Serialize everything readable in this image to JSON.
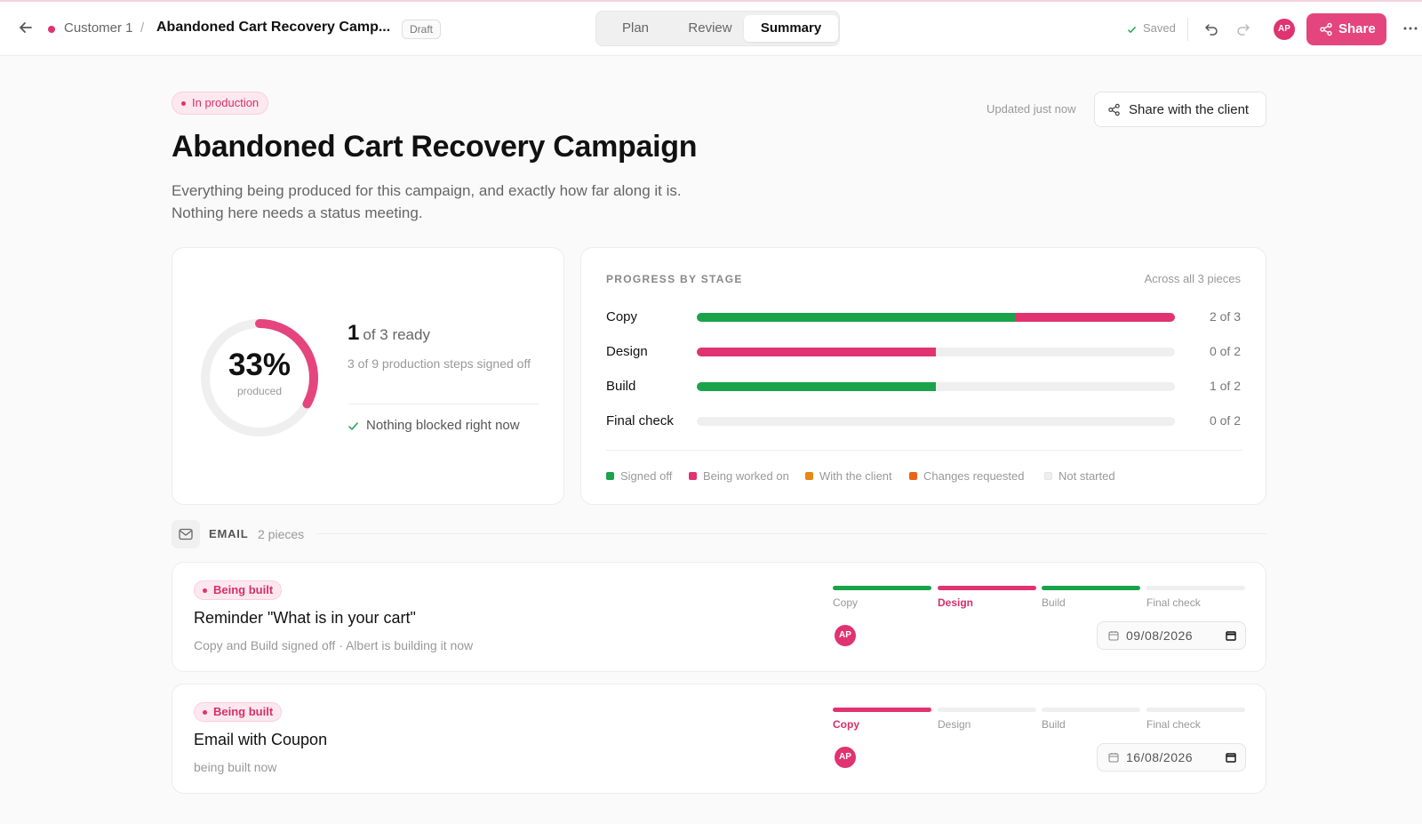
{
  "header": {
    "breadcrumb_parent": "Customer 1",
    "breadcrumb_separator": "/",
    "breadcrumb_title": "Abandoned Cart Recovery Camp...",
    "draft_label": "Draft",
    "tabs": [
      {
        "label": "Plan"
      },
      {
        "label": "Review"
      },
      {
        "label": "Summary",
        "active": true
      }
    ],
    "saved_label": "Saved",
    "avatar_initials": "AP",
    "share_label": "Share"
  },
  "main": {
    "status_badge": "In production",
    "updated_text": "Updated just now",
    "share_client_label": "Share with the client",
    "title": "Abandoned Cart Recovery Campaign",
    "description_line1": "Everything being produced for this campaign, and exactly how far along it is.",
    "description_line2": "Nothing here needs a status meeting."
  },
  "summary": {
    "percent": "33%",
    "percent_value": 0.33,
    "percent_label": "produced",
    "ready_count": "1",
    "ready_text": "of 3 ready",
    "steps_text": "3 of 9 production steps signed off",
    "blocked_text": "Nothing blocked right now"
  },
  "progress": {
    "title": "PROGRESS BY STAGE",
    "across_text": "Across all 3 pieces",
    "stages": [
      {
        "name": "Copy",
        "count": "2 of 3",
        "signed_off": 0.667,
        "being_worked_on": 0.333
      },
      {
        "name": "Design",
        "count": "0 of 2",
        "signed_off": 0,
        "being_worked_on": 0.5
      },
      {
        "name": "Build",
        "count": "1 of 2",
        "signed_off": 0.5,
        "being_worked_on": 0
      },
      {
        "name": "Final check",
        "count": "0 of 2",
        "signed_off": 0,
        "being_worked_on": 0
      }
    ],
    "legend": [
      {
        "label": "Signed off",
        "color": "#1aa34a"
      },
      {
        "label": "Being worked on",
        "color": "#e0336f"
      },
      {
        "label": "With the client",
        "color": "#e8871a"
      },
      {
        "label": "Changes requested",
        "color": "#e8641a"
      },
      {
        "label": "Not started",
        "color": "#eeeeee"
      }
    ]
  },
  "colors": {
    "accent": "#e4457c",
    "signed_off": "#1aa34a",
    "being_worked_on": "#e0336f",
    "not_started": "#efefef"
  },
  "section": {
    "label": "EMAIL",
    "count": "2 pieces",
    "icon": "mail-icon"
  },
  "pieces": [
    {
      "badge": "Being built",
      "title": "Reminder \"What is in your cart\"",
      "subtitle": "Copy and Build signed off · Albert is building it now",
      "stages": [
        {
          "label": "Copy",
          "state": "signed_off"
        },
        {
          "label": "Design",
          "state": "being_worked_on"
        },
        {
          "label": "Build",
          "state": "signed_off"
        },
        {
          "label": "Final check",
          "state": "not_started"
        }
      ],
      "assignee": "AP",
      "date": "09/08/2026"
    },
    {
      "badge": "Being built",
      "title": "Email with Coupon",
      "subtitle": "being built now",
      "stages": [
        {
          "label": "Copy",
          "state": "being_worked_on"
        },
        {
          "label": "Design",
          "state": "not_started"
        },
        {
          "label": "Build",
          "state": "not_started"
        },
        {
          "label": "Final check",
          "state": "not_started"
        }
      ],
      "assignee": "AP",
      "date": "16/08/2026"
    }
  ]
}
